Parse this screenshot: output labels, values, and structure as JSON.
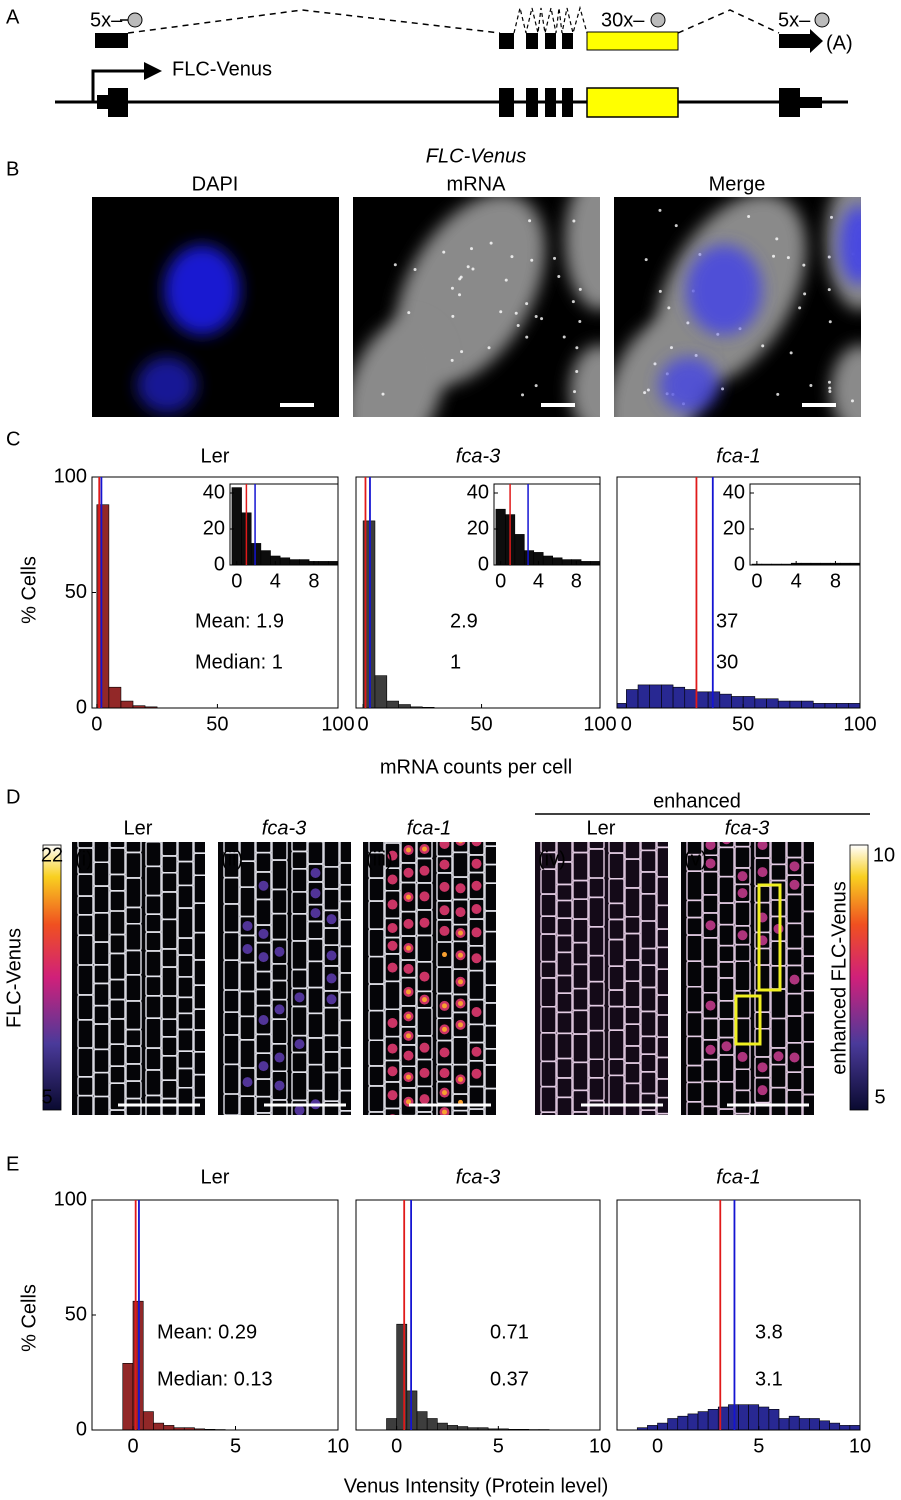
{
  "panel_labels": [
    "A",
    "B",
    "C",
    "D",
    "E"
  ],
  "gene_diagram": {
    "repeat_labels": [
      "5x–",
      "30x–",
      "5x–"
    ],
    "polya": "(A)",
    "promoter": "FLC-Venus"
  },
  "panel_b": {
    "title": "FLC-Venus",
    "image_titles": [
      "DAPI",
      "mRNA",
      "Merge"
    ]
  },
  "panel_c": {
    "xlabel": "mRNA counts per cell",
    "ylabel": "% Cells"
  },
  "panel_d": {
    "group_label": "enhanced",
    "image_titles": [
      "Ler",
      "fca-3",
      "fca-1",
      "Ler",
      "fca-3"
    ],
    "image_tags": [
      "(i)",
      "(ii)",
      "(iii)",
      "(iv)",
      "(v)"
    ],
    "colorbars": [
      {
        "label": "FLC-Venus",
        "max": 22,
        "min": 5
      },
      {
        "label": "enhanced FLC-Venus",
        "max": 10,
        "min": 5
      }
    ]
  },
  "panel_e": {
    "xlabel": "Venus Intensity (Protein level)",
    "ylabel": "% Cells"
  },
  "chart_data": [
    {
      "type": "histogram",
      "title": "Ler",
      "color": "#8c1c1c",
      "bins": [
        0,
        5,
        10,
        15,
        20,
        25,
        30,
        35,
        40,
        45,
        50,
        55,
        60,
        65,
        70,
        75,
        80,
        85,
        90,
        95,
        100
      ],
      "counts": [
        88,
        9,
        3,
        1,
        0.5,
        0,
        0,
        0,
        0,
        0,
        0,
        0,
        0,
        0,
        0,
        0,
        0,
        0,
        0,
        0
      ],
      "xlim": [
        -2,
        100
      ],
      "ylim": [
        0,
        100
      ],
      "xticks": [
        0,
        50,
        100
      ],
      "yticks": [
        0,
        50,
        100
      ],
      "annotations": [
        {
          "text": "Mean: 1.9",
          "value": 1.9,
          "color": "#1414d2"
        },
        {
          "text": "Median: 1",
          "value": 1,
          "color": "#e01a1a"
        }
      ],
      "inset": {
        "bins": [
          -0.5,
          0.5,
          1.5,
          2.5,
          3.5,
          4.5,
          5.5,
          6.5,
          7.5,
          8.5,
          9.5,
          10.5
        ],
        "counts": [
          43,
          29,
          12,
          8,
          5,
          4,
          3,
          3,
          2,
          2,
          2
        ],
        "xlim": [
          -0.7,
          10.5
        ],
        "ylim": [
          0,
          45
        ],
        "xticks": [
          0,
          4,
          8
        ],
        "yticks": [
          0,
          20,
          40
        ]
      }
    },
    {
      "type": "histogram",
      "title": "fca-3",
      "color": "#333333",
      "bins": [
        0,
        5,
        10,
        15,
        20,
        25,
        30,
        35,
        40,
        45,
        50,
        55,
        60,
        65,
        70,
        75,
        80,
        85,
        90,
        95,
        100
      ],
      "counts": [
        81,
        14,
        3,
        1.5,
        0.5,
        0.3,
        0,
        0,
        0,
        0,
        0,
        0,
        0,
        0,
        0,
        0,
        0,
        0,
        0,
        0
      ],
      "xlim": [
        -3,
        100
      ],
      "ylim": [
        0,
        100
      ],
      "xticks": [
        0,
        50,
        100
      ],
      "annotations": [
        {
          "text": "2.9",
          "value": 2.9,
          "color": "#1414d2"
        },
        {
          "text": "1",
          "value": 1,
          "color": "#e01a1a"
        }
      ],
      "inset": {
        "bins": [
          -0.5,
          0.5,
          1.5,
          2.5,
          3.5,
          4.5,
          5.5,
          6.5,
          7.5,
          8.5,
          9.5,
          10.5
        ],
        "counts": [
          31,
          28,
          17,
          8,
          7,
          5,
          4,
          3,
          3,
          2,
          2
        ],
        "xlim": [
          -0.7,
          10.5
        ],
        "ylim": [
          0,
          45
        ],
        "xticks": [
          0,
          4,
          8
        ],
        "yticks": [
          0,
          20,
          40
        ]
      }
    },
    {
      "type": "histogram",
      "title": "fca-1",
      "color": "#1c1c8c",
      "bins": [
        -5,
        0,
        5,
        10,
        15,
        20,
        25,
        30,
        35,
        40,
        45,
        50,
        55,
        60,
        65,
        70,
        75,
        80,
        85,
        90,
        95,
        100
      ],
      "counts": [
        2,
        8,
        10,
        10,
        10,
        9,
        8,
        7,
        7,
        6,
        5,
        5,
        4,
        4,
        3,
        3,
        3,
        2,
        2,
        2,
        2
      ],
      "xlim": [
        -4,
        100
      ],
      "ylim": [
        0,
        100
      ],
      "xticks": [
        0,
        50,
        100
      ],
      "annotations": [
        {
          "text": "37",
          "value": 37,
          "color": "#1414d2"
        },
        {
          "text": "30",
          "value": 30,
          "color": "#e01a1a"
        }
      ],
      "inset": {
        "bins": [
          -0.5,
          0.5,
          1.5,
          2.5,
          3.5,
          4.5,
          5.5,
          6.5,
          7.5,
          8.5,
          9.5,
          10.5
        ],
        "counts": [
          0.5,
          0.5,
          0.5,
          0.5,
          1,
          1,
          1,
          1,
          1,
          1,
          1
        ],
        "xlim": [
          -0.7,
          10.5
        ],
        "ylim": [
          0,
          45
        ],
        "xticks": [
          0,
          4,
          8
        ],
        "yticks": [
          0,
          20,
          40
        ]
      }
    },
    {
      "type": "histogram",
      "title": "Ler",
      "color": "#8c1c1c",
      "bins": [
        -0.5,
        0,
        0.5,
        1,
        1.5,
        2,
        2.5,
        3,
        3.5,
        4,
        4.5,
        5,
        5.5,
        6,
        6.5,
        7,
        7.5,
        8,
        8.5,
        9,
        9.5,
        10
      ],
      "counts": [
        29,
        56,
        8,
        3,
        2,
        1,
        1,
        0.5,
        0.3,
        0.2,
        0,
        0,
        0,
        0,
        0,
        0,
        0,
        0,
        0,
        0,
        0
      ],
      "xlim": [
        -2,
        10
      ],
      "ylim": [
        0,
        100
      ],
      "xticks": [
        0,
        5,
        10
      ],
      "yticks": [
        0,
        50,
        100
      ],
      "annotations": [
        {
          "text": "Mean: 0.29",
          "value": 0.29,
          "color": "#1414d2"
        },
        {
          "text": "Median: 0.13",
          "value": 0.13,
          "color": "#e01a1a"
        }
      ]
    },
    {
      "type": "histogram",
      "title": "fca-3",
      "color": "#333333",
      "bins": [
        -0.5,
        0,
        0.5,
        1,
        1.5,
        2,
        2.5,
        3,
        3.5,
        4,
        4.5,
        5,
        5.5,
        6,
        6.5,
        7,
        7.5,
        8,
        8.5,
        9,
        9.5,
        10
      ],
      "counts": [
        5,
        46,
        17,
        8,
        5,
        3,
        2,
        1.5,
        1,
        1,
        0.5,
        0.5,
        0.3,
        0.3,
        0.2,
        0.2,
        0,
        0,
        0,
        0,
        0
      ],
      "xlim": [
        -2,
        10
      ],
      "ylim": [
        0,
        100
      ],
      "xticks": [
        0,
        5,
        10
      ],
      "annotations": [
        {
          "text": "0.71",
          "value": 0.71,
          "color": "#1414d2"
        },
        {
          "text": "0.37",
          "value": 0.37,
          "color": "#e01a1a"
        }
      ]
    },
    {
      "type": "histogram",
      "title": "fca-1",
      "color": "#1c1c8c",
      "bins": [
        -1,
        -0.5,
        0,
        0.5,
        1,
        1.5,
        2,
        2.5,
        3,
        3.5,
        4,
        4.5,
        5,
        5.5,
        6,
        6.5,
        7,
        7.5,
        8,
        8.5,
        9,
        9.5,
        10
      ],
      "counts": [
        1,
        2,
        3,
        5,
        6,
        7,
        8,
        9,
        10,
        11,
        11,
        11,
        10,
        9,
        5,
        6,
        5,
        5,
        4,
        3,
        2,
        2
      ],
      "xlim": [
        -2,
        10
      ],
      "ylim": [
        0,
        100
      ],
      "xticks": [
        0,
        5,
        10
      ],
      "annotations": [
        {
          "text": "3.8",
          "value": 3.8,
          "color": "#1414d2"
        },
        {
          "text": "3.1",
          "value": 3.1,
          "color": "#e01a1a"
        }
      ]
    }
  ]
}
